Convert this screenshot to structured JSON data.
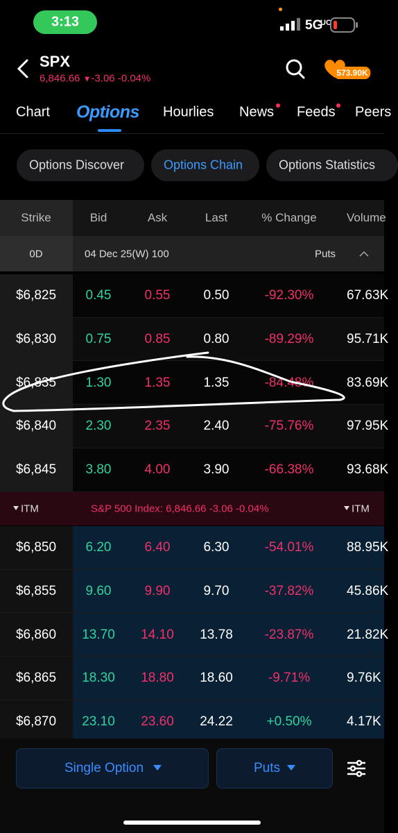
{
  "status": {
    "time": "3:13",
    "network": "5G",
    "network_suffix": "UC"
  },
  "header": {
    "symbol": "SPX",
    "price": "6,846.66",
    "change": "-3.06",
    "change_pct": "-0.04%",
    "badge": "573.90K"
  },
  "tabs": [
    "Chart",
    "Options",
    "Hourlies",
    "News",
    "Feeds",
    "Peers"
  ],
  "subtabs": [
    "Options Discover",
    "Options Chain",
    "Options Statistics"
  ],
  "columns": [
    "Strike",
    "Bid",
    "Ask",
    "Last",
    "% Change",
    "Volume"
  ],
  "group": {
    "expiry_short": "0D",
    "expiry": "04 Dec 25(W) 100",
    "side": "Puts"
  },
  "rows_above": [
    {
      "strike": "$6,825",
      "bid": "0.45",
      "ask": "0.55",
      "last": "0.50",
      "change": "-92.30%",
      "volume": "67.63K"
    },
    {
      "strike": "$6,830",
      "bid": "0.75",
      "ask": "0.85",
      "last": "0.80",
      "change": "-89.29%",
      "volume": "95.71K"
    },
    {
      "strike": "$6,835",
      "bid": "1.30",
      "ask": "1.35",
      "last": "1.35",
      "change": "-84.48%",
      "volume": "83.69K"
    },
    {
      "strike": "$6,840",
      "bid": "2.30",
      "ask": "2.35",
      "last": "2.40",
      "change": "-75.76%",
      "volume": "97.95K"
    },
    {
      "strike": "$6,845",
      "bid": "3.80",
      "ask": "4.00",
      "last": "3.90",
      "change": "-66.38%",
      "volume": "93.68K"
    }
  ],
  "itm_banner": {
    "left": "ITM",
    "center": "S&P 500 Index: 6,846.66 -3.06 -0.04%",
    "right": "ITM"
  },
  "rows_below": [
    {
      "strike": "$6,850",
      "bid": "6.20",
      "ask": "6.40",
      "last": "6.30",
      "change": "-54.01%",
      "volume": "88.95K"
    },
    {
      "strike": "$6,855",
      "bid": "9.60",
      "ask": "9.90",
      "last": "9.70",
      "change": "-37.82%",
      "volume": "45.86K"
    },
    {
      "strike": "$6,860",
      "bid": "13.70",
      "ask": "14.10",
      "last": "13.78",
      "change": "-23.87%",
      "volume": "21.82K"
    },
    {
      "strike": "$6,865",
      "bid": "18.30",
      "ask": "18.80",
      "last": "18.60",
      "change": "-9.71%",
      "volume": "9.76K"
    },
    {
      "strike": "$6,870",
      "bid": "23.10",
      "ask": "23.60",
      "last": "24.22",
      "change": "+0.50%",
      "volume": "4.17K"
    }
  ],
  "bottom": {
    "mode": "Single Option",
    "side": "Puts"
  }
}
